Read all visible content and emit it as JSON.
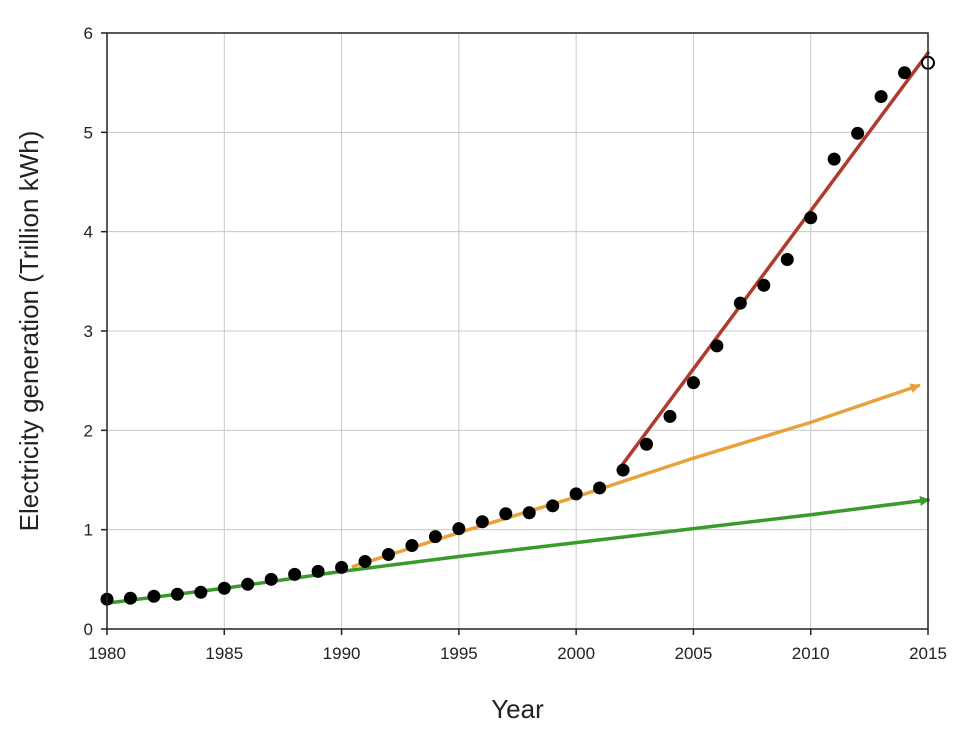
{
  "chart_data": {
    "type": "scatter",
    "title": "",
    "xlabel": "Year",
    "ylabel": "Electricity generation (Trillion kWh)",
    "xlim": [
      1980,
      2015
    ],
    "ylim": [
      0,
      6
    ],
    "xticks": [
      1980,
      1985,
      1990,
      1995,
      2000,
      2005,
      2010,
      2015
    ],
    "yticks": [
      0,
      1,
      2,
      3,
      4,
      5,
      6
    ],
    "grid": true,
    "legend": "none",
    "series": [
      {
        "kind": "points",
        "color": "#000000",
        "points": [
          [
            1980,
            0.3
          ],
          [
            1981,
            0.31
          ],
          [
            1982,
            0.33
          ],
          [
            1983,
            0.35
          ],
          [
            1984,
            0.37
          ],
          [
            1985,
            0.41
          ],
          [
            1986,
            0.45
          ],
          [
            1987,
            0.5
          ],
          [
            1988,
            0.55
          ],
          [
            1989,
            0.58
          ],
          [
            1990,
            0.62
          ],
          [
            1991,
            0.68
          ],
          [
            1992,
            0.75
          ],
          [
            1993,
            0.84
          ],
          [
            1994,
            0.93
          ],
          [
            1995,
            1.01
          ],
          [
            1996,
            1.08
          ],
          [
            1997,
            1.16
          ],
          [
            1998,
            1.17
          ],
          [
            1999,
            1.24
          ],
          [
            2000,
            1.36
          ],
          [
            2001,
            1.42
          ],
          [
            2002,
            1.6
          ],
          [
            2003,
            1.86
          ],
          [
            2004,
            2.14
          ],
          [
            2005,
            2.48
          ],
          [
            2006,
            2.85
          ],
          [
            2007,
            3.28
          ],
          [
            2008,
            3.46
          ],
          [
            2009,
            3.72
          ],
          [
            2010,
            4.14
          ],
          [
            2011,
            4.73
          ],
          [
            2012,
            4.99
          ],
          [
            2013,
            5.36
          ],
          [
            2014,
            5.6
          ]
        ]
      },
      {
        "kind": "open-point",
        "color": "#000000",
        "points": [
          [
            2015,
            5.7
          ]
        ]
      },
      {
        "kind": "trend",
        "color": "#3a9a2c",
        "arrow": true,
        "points": [
          [
            1980,
            0.26
          ],
          [
            1985,
            0.41
          ],
          [
            1990,
            0.58
          ],
          [
            1995,
            0.73
          ],
          [
            2000,
            0.87
          ],
          [
            2005,
            1.01
          ],
          [
            2010,
            1.15
          ],
          [
            2015,
            1.3
          ]
        ]
      },
      {
        "kind": "trend",
        "color": "#e9a23b",
        "arrow": true,
        "points": [
          [
            1990.5,
            0.63
          ],
          [
            1995,
            0.97
          ],
          [
            2000,
            1.33
          ],
          [
            2005,
            1.72
          ],
          [
            2010,
            2.08
          ],
          [
            2014.6,
            2.45
          ]
        ]
      },
      {
        "kind": "trend",
        "color": "#b03a2e",
        "arrow": false,
        "points": [
          [
            2001.8,
            1.6
          ],
          [
            2015,
            5.8
          ]
        ]
      }
    ]
  }
}
